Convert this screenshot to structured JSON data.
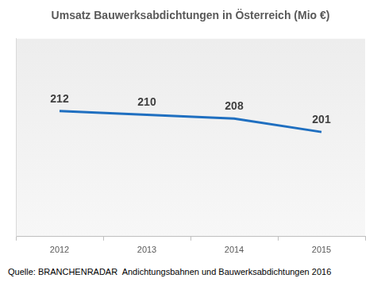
{
  "chart_data": {
    "type": "line",
    "title": "Umsatz Bauwerksabdichtungen in Österreich (Mio €)",
    "categories": [
      "2012",
      "2013",
      "2014",
      "2015"
    ],
    "values": [
      212,
      210,
      208,
      201
    ],
    "color": "#1f6fc0",
    "ylim": [
      146,
      250
    ],
    "grid": false,
    "data_labels": true,
    "tick_labels": "x",
    "annotations": [
      "Quelle: BRANCHENRADAR  Andichtungsbahnen und Bauwerksabdichtungen 2016"
    ]
  }
}
